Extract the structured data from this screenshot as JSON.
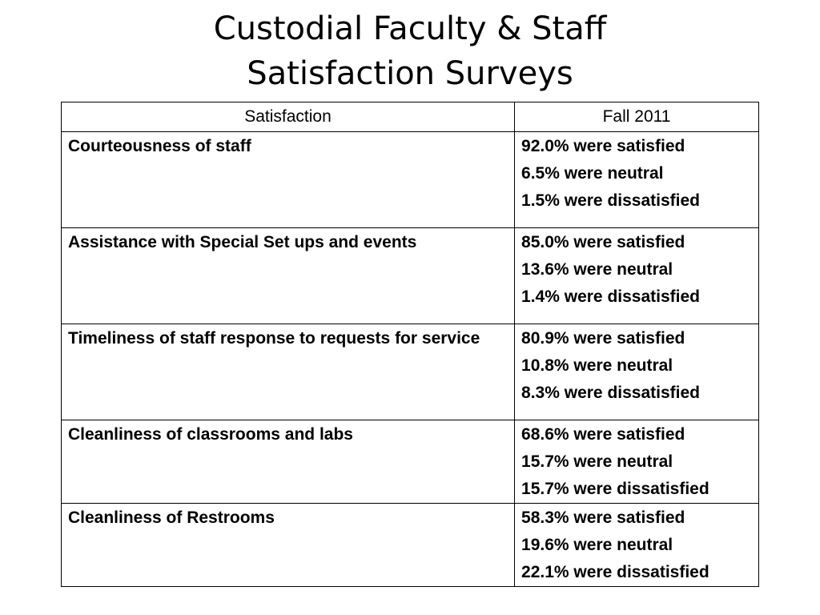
{
  "title": {
    "line1": "Custodial Faculty & Staff",
    "line2": "Satisfaction Surveys"
  },
  "table": {
    "headers": [
      "Satisfaction",
      "Fall 2011"
    ],
    "rows": [
      {
        "criterion": "Courteousness of staff",
        "results": [
          "92.0% were satisfied",
          "6.5% were neutral",
          "1.5% were dissatisfied"
        ]
      },
      {
        "criterion": "Assistance with Special Set ups and events",
        "results": [
          "85.0% were satisfied",
          "13.6% were neutral",
          "1.4% were dissatisfied"
        ]
      },
      {
        "criterion": "Timeliness of staff response to requests for service",
        "results": [
          "80.9% were satisfied",
          "10.8% were neutral",
          "8.3% were dissatisfied"
        ]
      },
      {
        "criterion": "Cleanliness of classrooms and labs",
        "results": [
          "68.6% were satisfied",
          "15.7% were neutral",
          "15.7% were dissatisfied"
        ]
      },
      {
        "criterion": "Cleanliness of Restrooms",
        "results": [
          "58.3% were satisfied",
          "19.6% were neutral",
          "22.1% were dissatisfied"
        ]
      }
    ]
  }
}
